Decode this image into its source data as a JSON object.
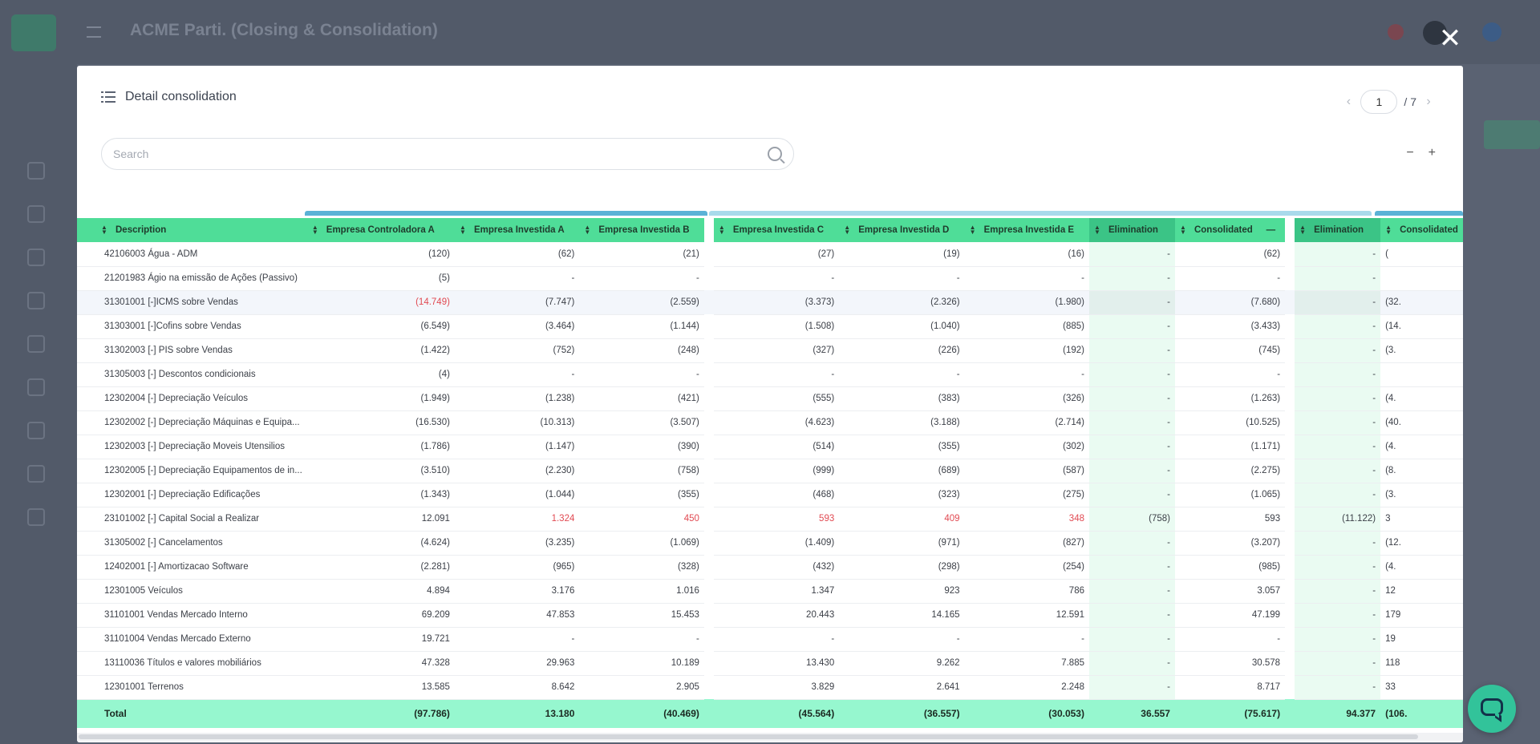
{
  "app": {
    "title": "ACME Parti. (Closing & Consolidation)"
  },
  "modal": {
    "title": "Detail consolidation",
    "close_label": "✕",
    "pager": {
      "prev": "‹",
      "next": "›",
      "current": "1",
      "total": "/ 7"
    },
    "search": {
      "placeholder": "Search",
      "value": ""
    },
    "zoom": {
      "minus": "−",
      "plus": "+"
    }
  },
  "colors": {
    "header": "#4fdd98",
    "elimination_header": "#3bc486",
    "total_row": "#96f7cf",
    "negative": "#e14a52",
    "group_bar_1": "#5bb2d6",
    "group_bar_2": "#a9daeb",
    "group_bar_3": "#5bb2d6"
  },
  "table": {
    "columns": [
      "Description",
      "Empresa Controladora A",
      "Empresa Investida A",
      "Empresa Investida B",
      "Empresa Investida C",
      "Empresa Investida D",
      "Empresa Investida E",
      "Elimination",
      "Consolidated",
      "Elimination",
      "Consolidated"
    ],
    "collapse_icon": "—",
    "rows": [
      {
        "desc": "42106003 Água - ADM",
        "v": [
          "(120)",
          "(62)",
          "(21)",
          "(27)",
          "(19)",
          "(16)",
          "-",
          "(62)",
          "-",
          "("
        ]
      },
      {
        "desc": "21201983 Ágio na emissão de Ações (Passivo)",
        "v": [
          "(5)",
          "-",
          "-",
          "-",
          "-",
          "-",
          "-",
          "-",
          "-",
          ""
        ]
      },
      {
        "desc": "31301001 [-]ICMS sobre Vendas",
        "v": [
          "(14.749)",
          "(7.747)",
          "(2.559)",
          "(3.373)",
          "(2.326)",
          "(1.980)",
          "-",
          "(7.680)",
          "-",
          "(32."
        ]
      },
      {
        "desc": "31303001 [-]Cofins sobre Vendas",
        "v": [
          "(6.549)",
          "(3.464)",
          "(1.144)",
          "(1.508)",
          "(1.040)",
          "(885)",
          "-",
          "(3.433)",
          "-",
          "(14."
        ]
      },
      {
        "desc": "31302003 [-] PIS sobre Vendas",
        "v": [
          "(1.422)",
          "(752)",
          "(248)",
          "(327)",
          "(226)",
          "(192)",
          "-",
          "(745)",
          "-",
          "(3."
        ]
      },
      {
        "desc": "31305003 [-] Descontos condicionais",
        "v": [
          "(4)",
          "-",
          "-",
          "-",
          "-",
          "-",
          "-",
          "-",
          "-",
          ""
        ]
      },
      {
        "desc": "12302004 [-] Depreciação Veículos",
        "v": [
          "(1.949)",
          "(1.238)",
          "(421)",
          "(555)",
          "(383)",
          "(326)",
          "-",
          "(1.263)",
          "-",
          "(4."
        ]
      },
      {
        "desc": "12302002 [-] Depreciação Máquinas e Equipa...",
        "v": [
          "(16.530)",
          "(10.313)",
          "(3.507)",
          "(4.623)",
          "(3.188)",
          "(2.714)",
          "-",
          "(10.525)",
          "-",
          "(40."
        ]
      },
      {
        "desc": "12302003 [-] Depreciação Moveis Utensilios",
        "v": [
          "(1.786)",
          "(1.147)",
          "(390)",
          "(514)",
          "(355)",
          "(302)",
          "-",
          "(1.171)",
          "-",
          "(4."
        ]
      },
      {
        "desc": "12302005 [-] Depreciação Equipamentos de in...",
        "v": [
          "(3.510)",
          "(2.230)",
          "(758)",
          "(999)",
          "(689)",
          "(587)",
          "-",
          "(2.275)",
          "-",
          "(8."
        ]
      },
      {
        "desc": "12302001 [-] Depreciação Edificações",
        "v": [
          "(1.343)",
          "(1.044)",
          "(355)",
          "(468)",
          "(323)",
          "(275)",
          "-",
          "(1.065)",
          "-",
          "(3."
        ]
      },
      {
        "desc": "23101002 [-] Capital Social a Realizar",
        "v": [
          "12.091",
          "1.324",
          "450",
          "593",
          "409",
          "348",
          "(758)",
          "593",
          "(11.122)",
          "3"
        ]
      },
      {
        "desc": "31305002 [-] Cancelamentos",
        "v": [
          "(4.624)",
          "(3.235)",
          "(1.069)",
          "(1.409)",
          "(971)",
          "(827)",
          "-",
          "(3.207)",
          "-",
          "(12."
        ]
      },
      {
        "desc": "12402001 [-] Amortizacao Software",
        "v": [
          "(2.281)",
          "(965)",
          "(328)",
          "(432)",
          "(298)",
          "(254)",
          "-",
          "(985)",
          "-",
          "(4."
        ]
      },
      {
        "desc": "12301005 Veículos",
        "v": [
          "4.894",
          "3.176",
          "1.016",
          "1.347",
          "923",
          "786",
          "-",
          "3.057",
          "-",
          "12"
        ]
      },
      {
        "desc": "31101001 Vendas Mercado Interno",
        "v": [
          "69.209",
          "47.853",
          "15.453",
          "20.443",
          "14.165",
          "12.591",
          "-",
          "47.199",
          "-",
          "179"
        ]
      },
      {
        "desc": "31101004 Vendas Mercado Externo",
        "v": [
          "19.721",
          "-",
          "-",
          "-",
          "-",
          "-",
          "-",
          "-",
          "-",
          "19"
        ]
      },
      {
        "desc": "13110036 Títulos e valores mobiliários",
        "v": [
          "47.328",
          "29.963",
          "10.189",
          "13.430",
          "9.262",
          "7.885",
          "-",
          "30.578",
          "-",
          "118"
        ]
      },
      {
        "desc": "12301001 Terrenos",
        "v": [
          "13.585",
          "8.642",
          "2.905",
          "3.829",
          "2.641",
          "2.248",
          "-",
          "8.717",
          "-",
          "33"
        ]
      }
    ],
    "total": {
      "desc": "Total",
      "v": [
        "(97.786)",
        "13.180",
        "(40.469)",
        "(45.564)",
        "(36.557)",
        "(30.053)",
        "36.557",
        "(75.617)",
        "94.377",
        "(106."
      ]
    }
  }
}
